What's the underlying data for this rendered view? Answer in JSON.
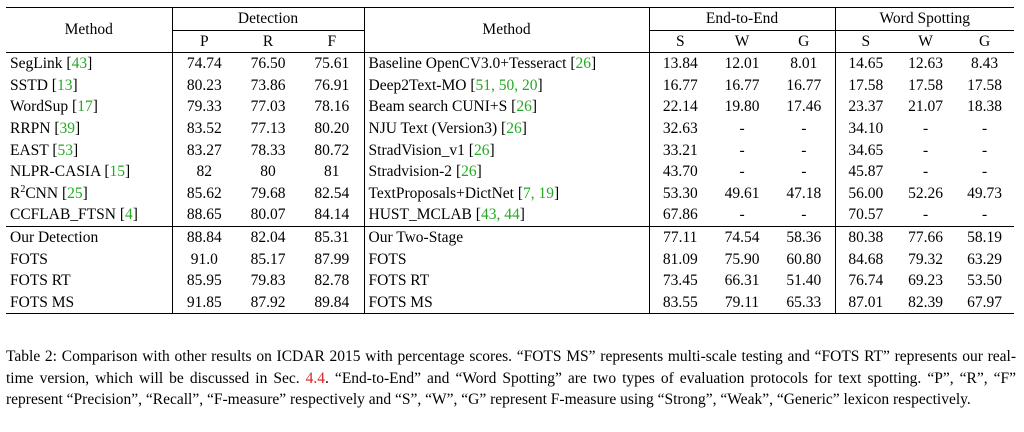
{
  "table": {
    "header": {
      "method_left": "Method",
      "detection": "Detection",
      "det_cols": [
        "P",
        "R",
        "F"
      ],
      "method_right": "Method",
      "end_to_end": "End-to-End",
      "word_spotting": "Word Spotting",
      "e2e_cols": [
        "S",
        "W",
        "G"
      ],
      "ws_cols": [
        "S",
        "W",
        "G"
      ]
    },
    "rows": [
      {
        "left_name": "SegLink",
        "left_ref": "43",
        "det": [
          "74.74",
          "76.50",
          "75.61"
        ],
        "right_name": "Baseline OpenCV3.0+Tesseract",
        "right_ref": "26",
        "e2e": [
          "13.84",
          "12.01",
          "8.01"
        ],
        "ws": [
          "14.65",
          "12.63",
          "8.43"
        ]
      },
      {
        "left_name": "SSTD",
        "left_ref": "13",
        "det": [
          "80.23",
          "73.86",
          "76.91"
        ],
        "right_name": "Deep2Text-MO",
        "right_ref": "51, 50, 20",
        "e2e": [
          "16.77",
          "16.77",
          "16.77"
        ],
        "ws": [
          "17.58",
          "17.58",
          "17.58"
        ]
      },
      {
        "left_name": "WordSup",
        "left_ref": "17",
        "det": [
          "79.33",
          "77.03",
          "78.16"
        ],
        "right_name": "Beam search CUNI+S",
        "right_ref": "26",
        "e2e": [
          "22.14",
          "19.80",
          "17.46"
        ],
        "ws": [
          "23.37",
          "21.07",
          "18.38"
        ]
      },
      {
        "left_name": "RRPN",
        "left_ref": "39",
        "det": [
          "83.52",
          "77.13",
          "80.20"
        ],
        "right_name": "NJU Text (Version3)",
        "right_ref": "26",
        "e2e": [
          "32.63",
          "-",
          "-"
        ],
        "ws": [
          "34.10",
          "-",
          "-"
        ]
      },
      {
        "left_name": "EAST",
        "left_ref": "53",
        "det": [
          "83.27",
          "78.33",
          "80.72"
        ],
        "right_name": "StradVision_v1",
        "right_ref": "26",
        "e2e": [
          "33.21",
          "-",
          "-"
        ],
        "ws": [
          "34.65",
          "-",
          "-"
        ]
      },
      {
        "left_name": "NLPR-CASIA",
        "left_ref": "15",
        "det": [
          "82",
          "80",
          "81"
        ],
        "right_name": "Stradvision-2",
        "right_ref": "26",
        "e2e": [
          "43.70",
          "-",
          "-"
        ],
        "ws": [
          "45.87",
          "-",
          "-"
        ]
      },
      {
        "left_name": "R",
        "left_sup": "2",
        "left_name_rest": "CNN",
        "left_ref": "25",
        "det": [
          "85.62",
          "79.68",
          "82.54"
        ],
        "right_name": "TextProposals+DictNet",
        "right_ref": "7, 19",
        "e2e": [
          "53.30",
          "49.61",
          "47.18"
        ],
        "ws": [
          "56.00",
          "52.26",
          "49.73"
        ]
      },
      {
        "left_name": "CCFLAB_FTSN",
        "left_ref": "4",
        "det": [
          "88.65",
          "80.07",
          "84.14"
        ],
        "right_name": "HUST_MCLAB",
        "right_ref": "43, 44",
        "e2e": [
          "67.86",
          "-",
          "-"
        ],
        "ws": [
          "70.57",
          "-",
          "-"
        ]
      }
    ],
    "ours": [
      {
        "left_name": "Our Detection",
        "det": [
          "88.84",
          "82.04",
          "85.31"
        ],
        "right_name": "Our Two-Stage",
        "e2e": [
          "77.11",
          "74.54",
          "58.36"
        ],
        "ws": [
          "80.38",
          "77.66",
          "58.19"
        ],
        "bold": false
      },
      {
        "left_name": "FOTS",
        "det": [
          "91.0",
          "85.17",
          "87.99"
        ],
        "right_name": "FOTS",
        "e2e": [
          "81.09",
          "75.90",
          "60.80"
        ],
        "ws": [
          "84.68",
          "79.32",
          "63.29"
        ],
        "bold": false
      },
      {
        "left_name": "FOTS RT",
        "det": [
          "85.95",
          "79.83",
          "82.78"
        ],
        "right_name": "FOTS RT",
        "e2e": [
          "73.45",
          "66.31",
          "51.40"
        ],
        "ws": [
          "76.74",
          "69.23",
          "53.50"
        ],
        "bold": false
      },
      {
        "left_name": "FOTS MS",
        "det": [
          "91.85",
          "87.92",
          "89.84"
        ],
        "right_name": "FOTS MS",
        "e2e": [
          "83.55",
          "79.11",
          "65.33"
        ],
        "ws": [
          "87.01",
          "82.39",
          "67.97"
        ],
        "bold": true
      }
    ]
  },
  "caption": {
    "p1": "Table 2: Comparison with other results on ICDAR 2015 with percentage scores. “FOTS MS” represents multi-scale testing and “FOTS RT” represents our real-time version, which will be discussed in Sec. ",
    "sec_ref": "4.4",
    "p2": ". “End-to-End” and “Word Spotting” are two types of evaluation protocols for text spotting. “P”, “R”, “F” represent “Precision”, “Recall”, “F-measure” respectively and “S”, “W”, “G” represent F-measure using “Strong”, “Weak”, “Generic” lexicon respectively."
  }
}
